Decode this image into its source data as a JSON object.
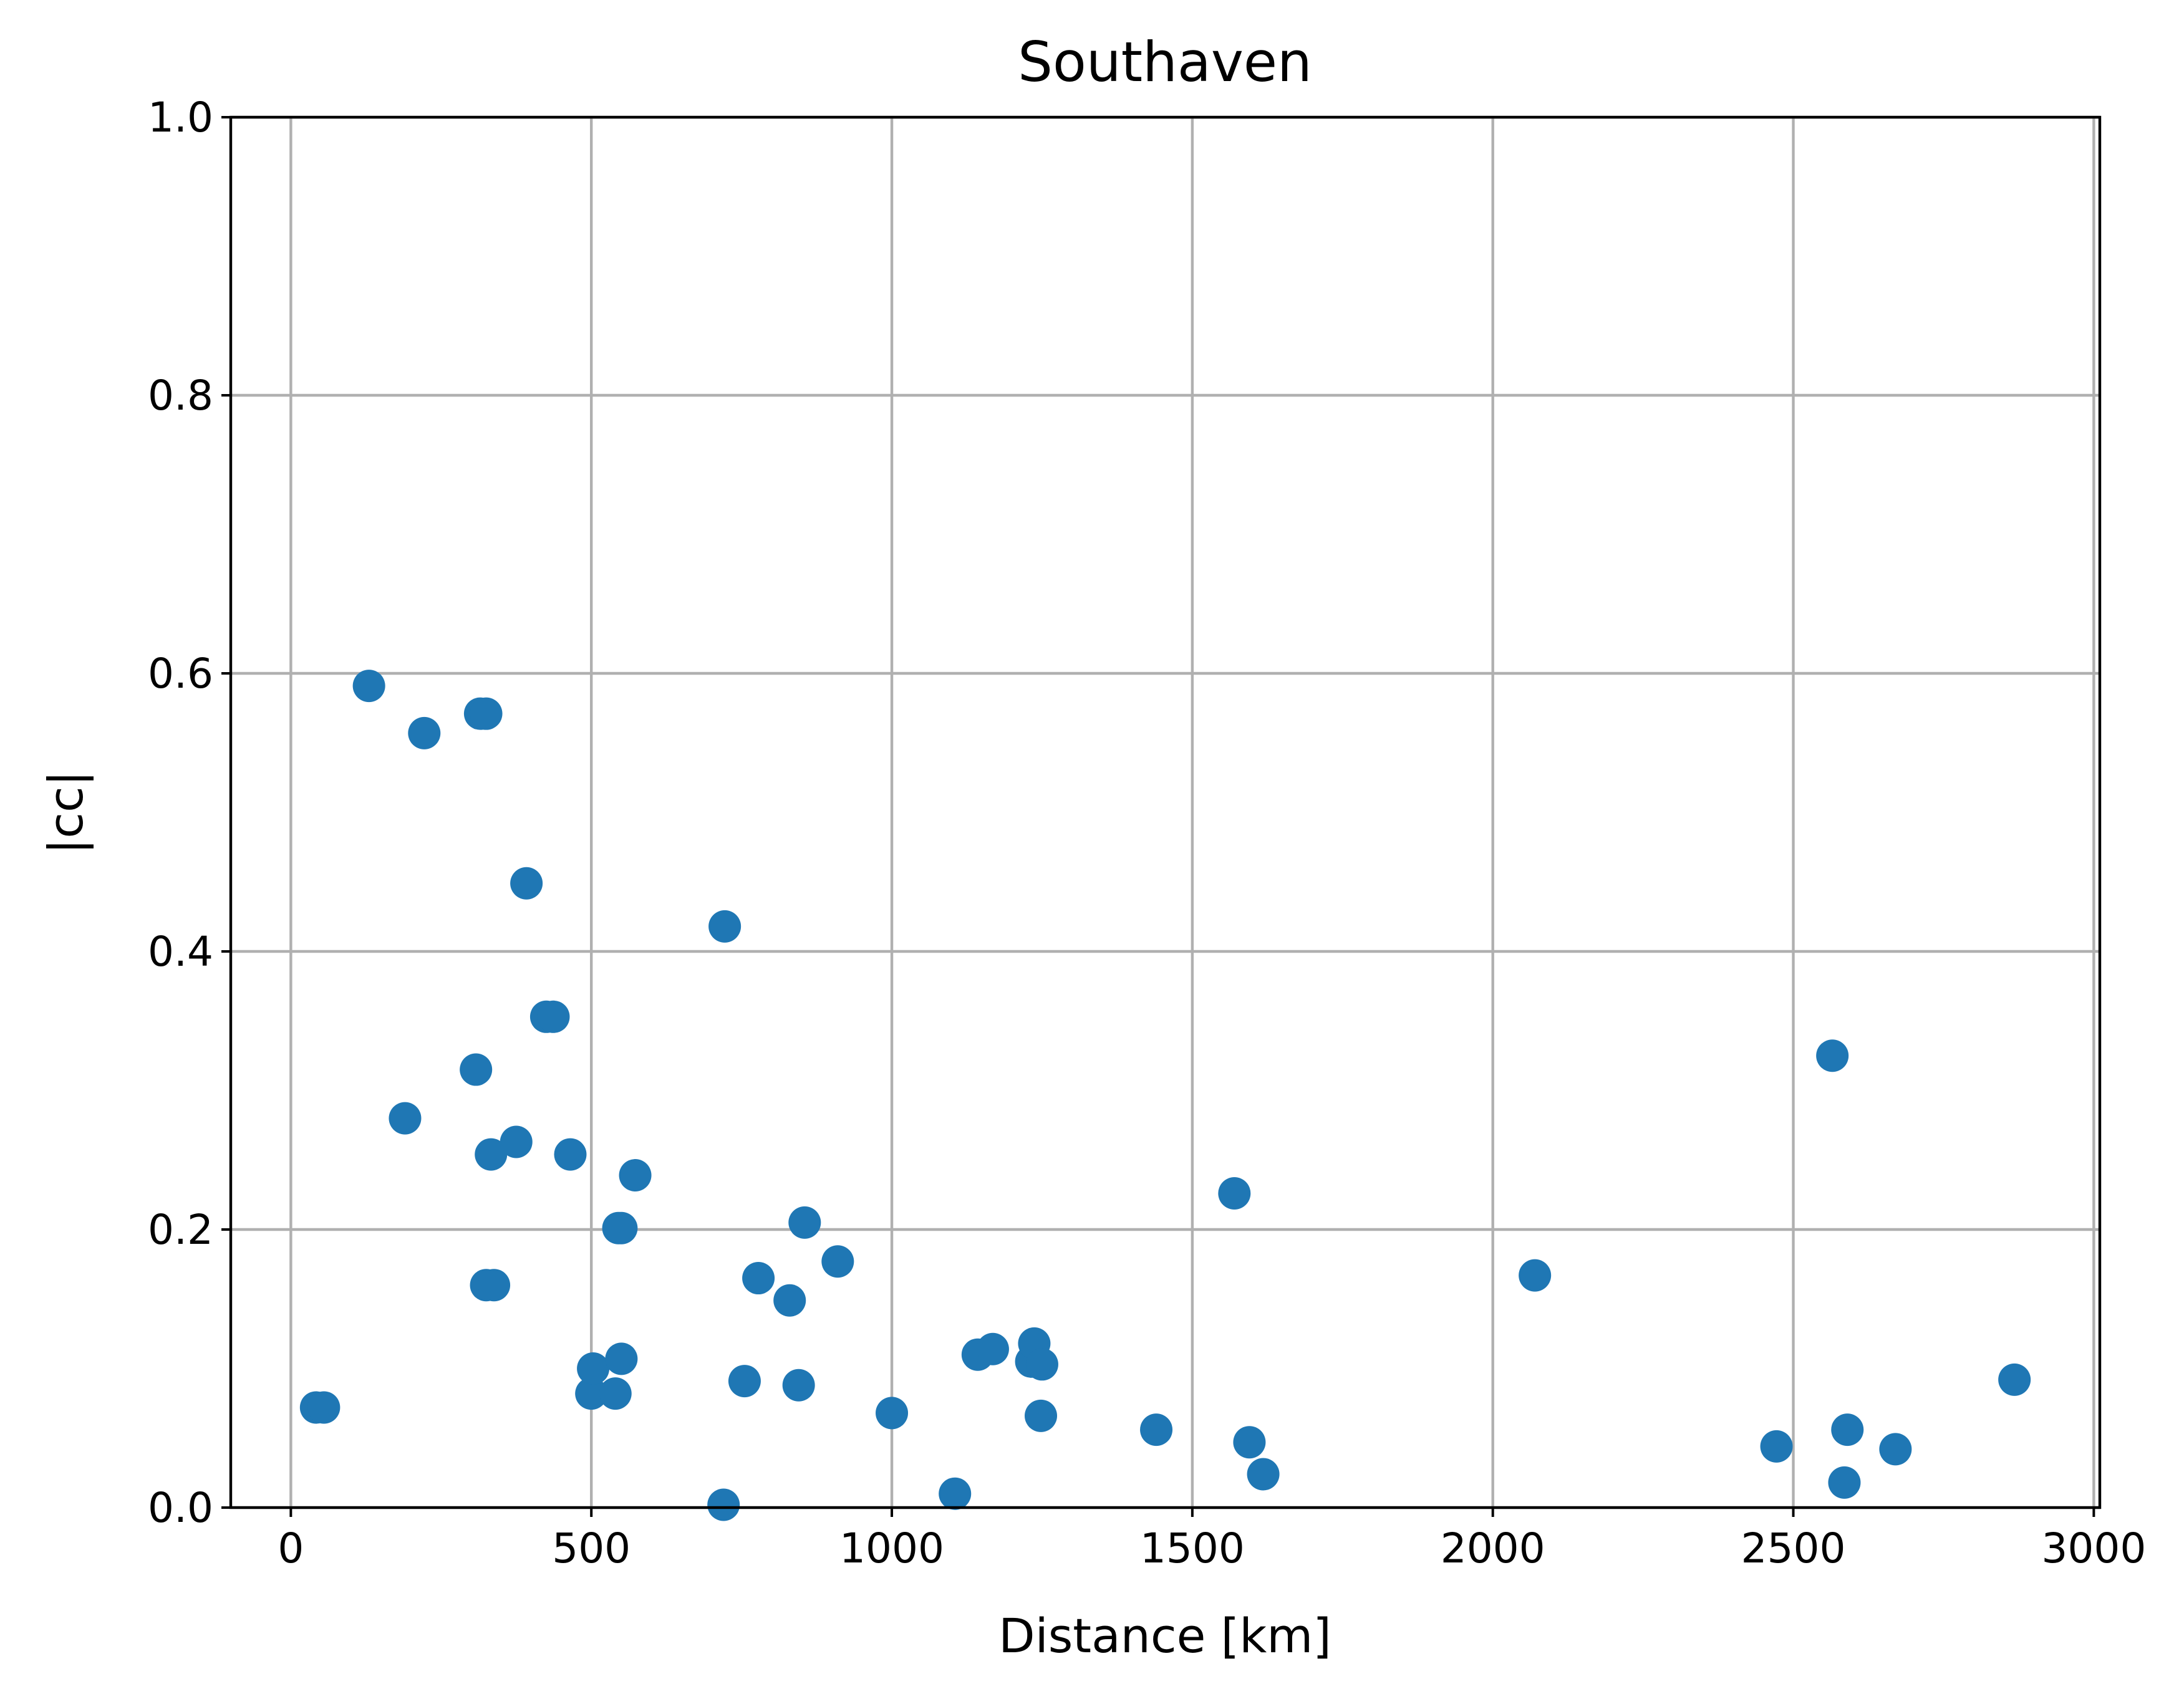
{
  "chart_data": {
    "type": "scatter",
    "title": "Southaven",
    "xlabel": "Distance [km]",
    "ylabel": "|cc|",
    "xlim": [
      -100,
      3010
    ],
    "ylim": [
      0.0,
      1.0
    ],
    "xticks": [
      0,
      500,
      1000,
      1500,
      2000,
      2500,
      3000
    ],
    "xtick_labels": [
      "0",
      "500",
      "1000",
      "1500",
      "2000",
      "2500",
      "3000"
    ],
    "yticks": [
      0.0,
      0.2,
      0.4,
      0.6,
      0.8,
      1.0
    ],
    "ytick_labels": [
      "0.0",
      "0.2",
      "0.4",
      "0.6",
      "0.8",
      "1.0"
    ],
    "grid": true,
    "marker_color": "#1f77b4",
    "series": [
      {
        "points": [
          [
            42,
            0.072
          ],
          [
            55,
            0.072
          ],
          [
            130,
            0.591
          ],
          [
            190,
            0.28
          ],
          [
            222,
            0.557
          ],
          [
            308,
            0.315
          ],
          [
            315,
            0.571
          ],
          [
            325,
            0.571
          ],
          [
            325,
            0.16
          ],
          [
            333,
            0.254
          ],
          [
            338,
            0.16
          ],
          [
            375,
            0.263
          ],
          [
            392,
            0.449
          ],
          [
            425,
            0.353
          ],
          [
            437,
            0.353
          ],
          [
            465,
            0.254
          ],
          [
            500,
            0.082
          ],
          [
            503,
            0.1
          ],
          [
            540,
            0.082
          ],
          [
            545,
            0.201
          ],
          [
            550,
            0.201
          ],
          [
            550,
            0.107
          ],
          [
            573,
            0.239
          ],
          [
            720,
            0.002
          ],
          [
            722,
            0.418
          ],
          [
            755,
            0.091
          ],
          [
            778,
            0.165
          ],
          [
            830,
            0.149
          ],
          [
            845,
            0.088
          ],
          [
            855,
            0.205
          ],
          [
            910,
            0.177
          ],
          [
            1000,
            0.068
          ],
          [
            1105,
            0.01
          ],
          [
            1143,
            0.11
          ],
          [
            1168,
            0.114
          ],
          [
            1232,
            0.105
          ],
          [
            1237,
            0.118
          ],
          [
            1250,
            0.103
          ],
          [
            1248,
            0.066
          ],
          [
            1440,
            0.056
          ],
          [
            1570,
            0.226
          ],
          [
            1595,
            0.047
          ],
          [
            1618,
            0.024
          ],
          [
            2070,
            0.167
          ],
          [
            2472,
            0.044
          ],
          [
            2565,
            0.325
          ],
          [
            2585,
            0.018
          ],
          [
            2590,
            0.056
          ],
          [
            2670,
            0.042
          ],
          [
            2868,
            0.092
          ]
        ]
      }
    ]
  }
}
